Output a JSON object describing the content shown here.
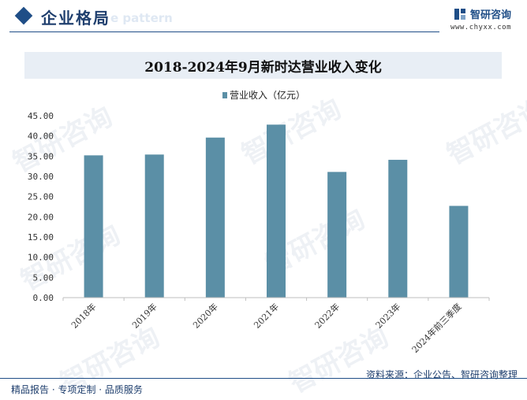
{
  "header": {
    "section_title": "企业格局",
    "section_ghost": "e pattern",
    "brand_name": "智研咨询",
    "brand_url": "www.chyxx.com"
  },
  "chart_data": {
    "type": "bar",
    "title": "2018-2024年9月新时达营业收入变化",
    "categories": [
      "2018年",
      "2019年",
      "2020年",
      "2021年",
      "2022年",
      "2023年",
      "2024年前三季度"
    ],
    "series": [
      {
        "name": "营业收入（亿元）",
        "values": [
          35.2,
          35.4,
          39.6,
          42.8,
          31.1,
          34.1,
          22.7
        ]
      }
    ],
    "ylim": [
      0,
      45
    ],
    "yticks": [
      "0.00",
      "5.00",
      "10.00",
      "15.00",
      "20.00",
      "25.00",
      "30.00",
      "35.00",
      "40.00",
      "45.00"
    ],
    "xlabel": "",
    "ylabel": "",
    "legend_position": "top-center",
    "grid": false,
    "bar_color": "#5b8fa6"
  },
  "footer": {
    "left": "精品报告 · 专项定制 · 品质服务",
    "right": "资料来源：企业公告、智研咨询整理"
  },
  "watermark_text": "智研咨询"
}
